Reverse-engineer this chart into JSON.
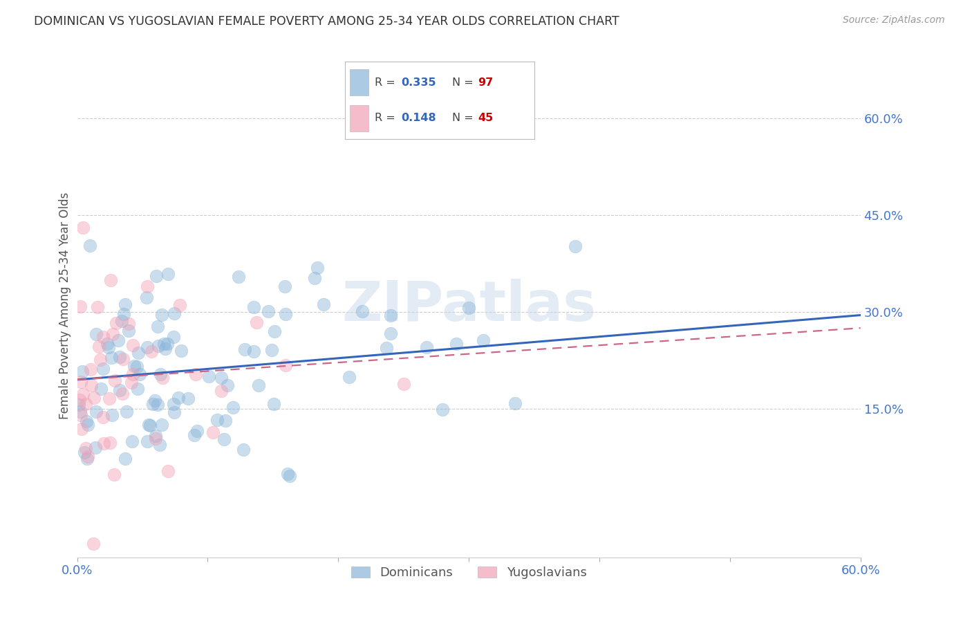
{
  "title": "DOMINICAN VS YUGOSLAVIAN FEMALE POVERTY AMONG 25-34 YEAR OLDS CORRELATION CHART",
  "source": "Source: ZipAtlas.com",
  "ylabel": "Female Poverty Among 25-34 Year Olds",
  "xlim": [
    0.0,
    0.6
  ],
  "ylim": [
    -0.08,
    0.7
  ],
  "yticks": [
    0.15,
    0.3,
    0.45,
    0.6
  ],
  "ytick_labels_right": [
    "15.0%",
    "30.0%",
    "45.0%",
    "60.0%"
  ],
  "dominican_color": "#8ab4d9",
  "yugoslavian_color": "#f2a0b5",
  "dominican_line_color": "#3366bb",
  "yugoslavian_line_color": "#cc6688",
  "R_dominican": 0.335,
  "N_dominican": 97,
  "R_yugoslavian": 0.148,
  "N_yugoslavian": 45,
  "background_color": "#ffffff",
  "grid_color": "#cccccc",
  "title_color": "#333333",
  "axis_label_color": "#555555",
  "tick_label_color": "#4477cc",
  "watermark": "ZIPatlas",
  "dom_line_y0": 0.195,
  "dom_line_y1": 0.295,
  "yug_line_y0": 0.195,
  "yug_line_y1": 0.275
}
